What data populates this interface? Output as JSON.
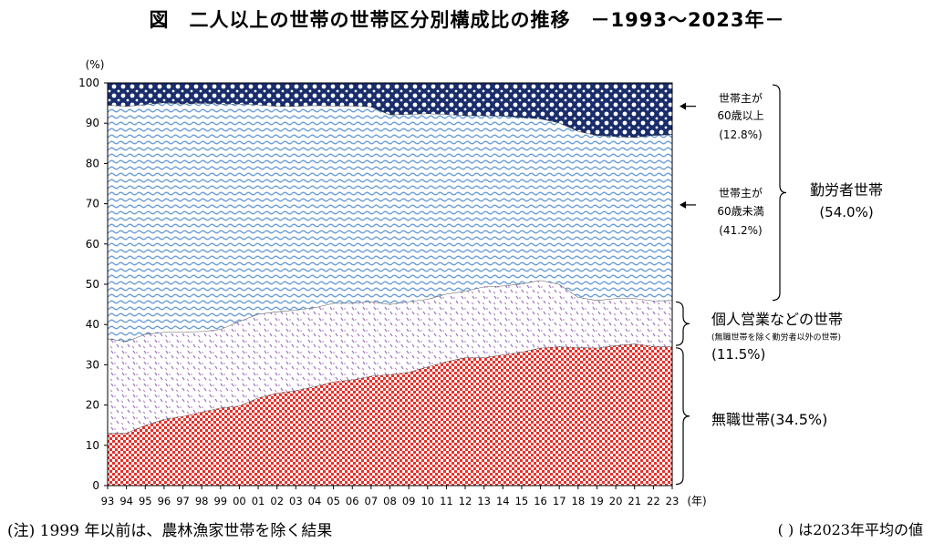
{
  "title": "図　二人以上の世帯の世帯区分別構成比の推移　－1993～2023年－",
  "footnote_left": "(注) 1999 年以前は、農林漁家世帯を除く結果",
  "footnote_right": "( ) は2023年平均の値",
  "colors": {
    "unemployed": "#e8312b",
    "self_employed": "#9b7fc4",
    "worker_under60": "#6e9fd6",
    "worker_60over": "#1a2d6b"
  },
  "chart_data": {
    "type": "area",
    "stacked": true,
    "x": [
      "93",
      "94",
      "95",
      "96",
      "97",
      "98",
      "99",
      "00",
      "01",
      "02",
      "03",
      "04",
      "05",
      "06",
      "07",
      "08",
      "09",
      "10",
      "11",
      "12",
      "13",
      "14",
      "15",
      "16",
      "17",
      "18",
      "19",
      "20",
      "21",
      "22",
      "23"
    ],
    "ylim": [
      0,
      100
    ],
    "yticks": [
      0,
      10,
      20,
      30,
      40,
      50,
      60,
      70,
      80,
      90,
      100
    ],
    "ylabel": "(%)",
    "xlabel": "(年)",
    "series": [
      {
        "key": "unemployed",
        "values": [
          13.0,
          13.0,
          15.0,
          16.5,
          17.2,
          18.3,
          19.3,
          19.8,
          21.8,
          23.0,
          23.6,
          24.6,
          25.8,
          26.3,
          27.2,
          27.6,
          28.2,
          29.5,
          30.8,
          31.8,
          31.8,
          32.5,
          33.2,
          34.2,
          34.5,
          34.3,
          34.2,
          34.8,
          35.2,
          34.6,
          34.5
        ]
      },
      {
        "key": "self_employed",
        "values": [
          23.5,
          22.8,
          22.6,
          21.6,
          21.0,
          20.0,
          19.5,
          21.0,
          20.8,
          20.2,
          20.0,
          19.6,
          19.5,
          19.0,
          18.5,
          17.4,
          17.5,
          16.8,
          16.8,
          16.5,
          17.6,
          17.1,
          16.9,
          16.8,
          15.5,
          12.5,
          11.8,
          11.7,
          11.3,
          11.3,
          11.5
        ]
      },
      {
        "key": "worker_under60",
        "values": [
          58.0,
          58.4,
          57.1,
          57.0,
          56.6,
          56.7,
          56.0,
          54.0,
          52.0,
          51.0,
          50.6,
          50.2,
          49.0,
          49.0,
          48.4,
          47.1,
          46.5,
          46.1,
          44.6,
          43.6,
          42.5,
          42.2,
          41.3,
          40.1,
          40.1,
          41.2,
          41.0,
          40.2,
          40.0,
          41.1,
          41.2
        ]
      },
      {
        "key": "worker_60over",
        "values": [
          5.5,
          5.8,
          5.3,
          4.9,
          5.2,
          5.0,
          5.2,
          5.2,
          5.4,
          5.8,
          5.8,
          5.6,
          5.7,
          5.7,
          5.9,
          7.9,
          7.8,
          7.6,
          7.8,
          8.1,
          8.1,
          8.2,
          8.6,
          8.9,
          9.9,
          12.0,
          13.0,
          13.3,
          13.5,
          13.0,
          12.8
        ]
      }
    ],
    "annotations": {
      "worker_60over": {
        "lines": [
          "世帯主が",
          "60歳以上",
          "(12.8%)"
        ]
      },
      "worker_under60": {
        "lines": [
          "世帯主が",
          "60歳未満",
          "(41.2%)"
        ]
      },
      "worker_group": {
        "lines": [
          "勤労者世帯",
          "(54.0%)"
        ]
      },
      "self_employed": {
        "lines": [
          "個人営業などの世帯",
          "(無職世帯を除く勤労者以外の世帯)",
          "(11.5%)"
        ]
      },
      "unemployed": {
        "lines": [
          "無職世帯(34.5%)"
        ]
      }
    }
  }
}
